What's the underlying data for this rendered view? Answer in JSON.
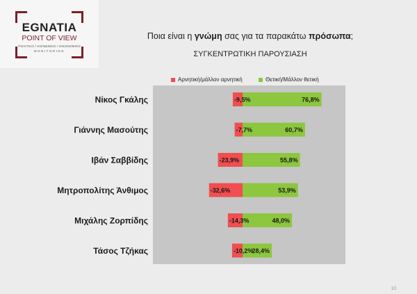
{
  "logo": {
    "title": "EGNATIA",
    "subtitle": "POINT OF VIEW",
    "tagline": "ΠΟΛΙΤΙΚΟ / ΚΟΙΝΩΝΙΚΟ / ΟΙΚΟΝΟΜΙΚΟ",
    "tagline2": "MONITORING",
    "accent": "#7a1f2b"
  },
  "header": {
    "question_pre": "Ποια είναι η ",
    "question_bold1": "γνώμη",
    "question_mid": " σας για τα παρακάτω ",
    "question_bold2": "πρόσωπα",
    "question_post": ";",
    "subtitle": "ΣΥΓΚΕΝΤΡΩΤΙΚΗ ΠΑΡΟΥΣΙΑΣΗ"
  },
  "page_number": "10",
  "chart_data": {
    "type": "bar",
    "orientation": "horizontal-diverging",
    "categories": [
      "Νίκος Γκάλης",
      "Γιάννης Μασούτης",
      "Ιβάν Σαββίδης",
      "Μητροπολίτης Άνθιμος",
      "Μιχάλης Ζορπίδης",
      "Τάσος Τζήκας"
    ],
    "series": [
      {
        "name": "Αρνητική/μάλλον αρνητική",
        "color": "#f04e50",
        "values": [
          -9.5,
          -7.7,
          -23.9,
          -32.6,
          -14.3,
          -10.2
        ],
        "labels": [
          "-9,5%",
          "-7,7%",
          "-23,9%",
          "-32,6%",
          "-14,3%",
          "-10,2%"
        ]
      },
      {
        "name": "Θετική/Μάλλον θετική",
        "color": "#8dc63f",
        "values": [
          76.8,
          60.7,
          55.8,
          53.9,
          48.0,
          28.4
        ],
        "labels": [
          "76,8%",
          "60,7%",
          "55,8%",
          "53,9%",
          "48,0%",
          "28,4%"
        ]
      }
    ],
    "legend_position": "top",
    "grid": false
  }
}
